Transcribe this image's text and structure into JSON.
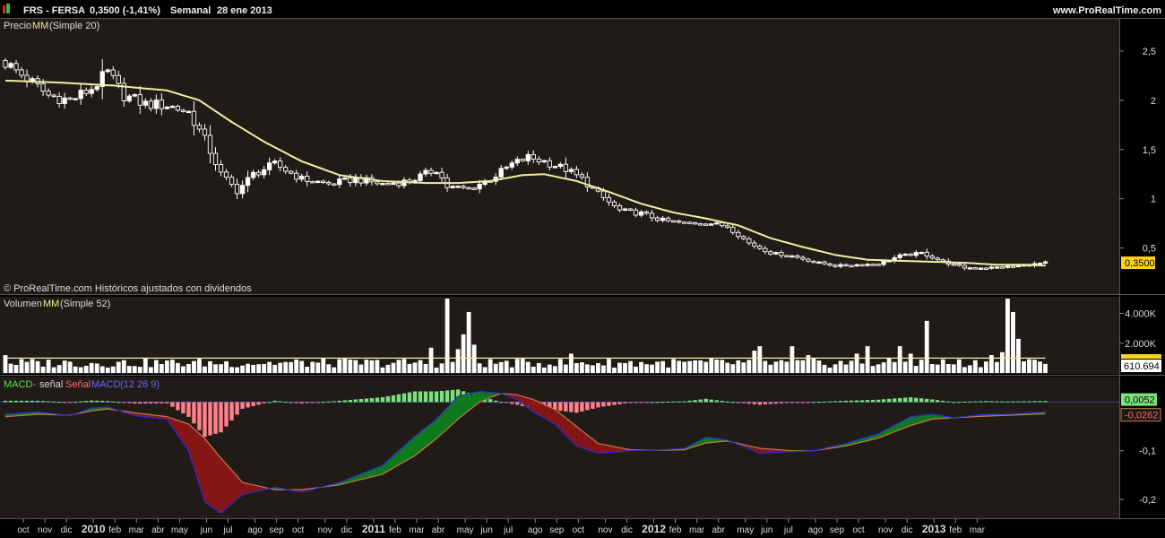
{
  "header": {
    "ticker": "FRS - FERSA",
    "quote": "0,3500 (-1,41%)",
    "period": "Semanal",
    "date": "28 ene 2013",
    "site": "www.ProRealTime.com"
  },
  "footer_note": "© ProRealTime.com Históricos ajustados con dividendos",
  "colors": {
    "background": "#201b17",
    "ma_line": "#f2eea0",
    "macd_line": "#2a2ad6",
    "signal_line": "#c87a46",
    "hist_up": "#7be27b",
    "hist_down": "#ff7f8a",
    "fill_up": "#0f7a1d",
    "fill_down": "#861515",
    "price_tag": "#ffd21f",
    "volume_tag": "#ffffff"
  },
  "chart_data": [
    {
      "type": "candlestick",
      "legend": {
        "label": "Precio",
        "ma": "MM",
        "ma_params": "(Simple 20)"
      },
      "ylim": [
        0.05,
        2.8
      ],
      "yticks": [
        "2,5",
        "2",
        "1,5",
        "1",
        "0,5"
      ],
      "ytick_values": [
        2.5,
        2.0,
        1.5,
        1.0,
        0.5
      ],
      "last_value_label": "0,3500",
      "last_value": 0.35,
      "close_anchors": [
        [
          0,
          2.38
        ],
        [
          4,
          2.22
        ],
        [
          8,
          2.05
        ],
        [
          12,
          2.0
        ],
        [
          16,
          2.12
        ],
        [
          19,
          2.28
        ],
        [
          22,
          2.05
        ],
        [
          26,
          1.96
        ],
        [
          30,
          1.95
        ],
        [
          34,
          1.88
        ],
        [
          37,
          1.6
        ],
        [
          40,
          1.25
        ],
        [
          43,
          1.08
        ],
        [
          46,
          1.25
        ],
        [
          50,
          1.35
        ],
        [
          55,
          1.2
        ],
        [
          60,
          1.15
        ],
        [
          65,
          1.2
        ],
        [
          70,
          1.15
        ],
        [
          75,
          1.18
        ],
        [
          80,
          1.3
        ],
        [
          82,
          1.12
        ],
        [
          86,
          1.1
        ],
        [
          90,
          1.2
        ],
        [
          94,
          1.35
        ],
        [
          97,
          1.42
        ],
        [
          100,
          1.38
        ],
        [
          104,
          1.3
        ],
        [
          107,
          1.2
        ],
        [
          110,
          1.05
        ],
        [
          114,
          0.88
        ],
        [
          118,
          0.85
        ],
        [
          122,
          0.78
        ],
        [
          126,
          0.75
        ],
        [
          130,
          0.76
        ],
        [
          134,
          0.72
        ],
        [
          138,
          0.55
        ],
        [
          142,
          0.45
        ],
        [
          146,
          0.42
        ],
        [
          150,
          0.36
        ],
        [
          154,
          0.32
        ],
        [
          158,
          0.33
        ],
        [
          162,
          0.34
        ],
        [
          166,
          0.42
        ],
        [
          170,
          0.45
        ],
        [
          174,
          0.36
        ],
        [
          178,
          0.3
        ],
        [
          182,
          0.3
        ],
        [
          186,
          0.31
        ],
        [
          190,
          0.33
        ],
        [
          193,
          0.35
        ]
      ],
      "ma_anchors": [
        [
          0,
          2.2
        ],
        [
          10,
          2.18
        ],
        [
          20,
          2.15
        ],
        [
          30,
          2.1
        ],
        [
          36,
          2.0
        ],
        [
          42,
          1.78
        ],
        [
          48,
          1.58
        ],
        [
          55,
          1.38
        ],
        [
          62,
          1.24
        ],
        [
          70,
          1.18
        ],
        [
          78,
          1.16
        ],
        [
          84,
          1.16
        ],
        [
          90,
          1.18
        ],
        [
          96,
          1.24
        ],
        [
          100,
          1.25
        ],
        [
          106,
          1.18
        ],
        [
          112,
          1.07
        ],
        [
          118,
          0.95
        ],
        [
          124,
          0.86
        ],
        [
          130,
          0.8
        ],
        [
          136,
          0.73
        ],
        [
          142,
          0.6
        ],
        [
          148,
          0.51
        ],
        [
          154,
          0.43
        ],
        [
          160,
          0.38
        ],
        [
          166,
          0.37
        ],
        [
          172,
          0.36
        ],
        [
          178,
          0.35
        ],
        [
          184,
          0.33
        ],
        [
          190,
          0.33
        ],
        [
          193,
          0.32
        ]
      ]
    },
    {
      "type": "bar",
      "legend": {
        "label": "Volumen",
        "ma": "MM",
        "ma_params": "(Simple 52)"
      },
      "ylim": [
        0,
        5000000
      ],
      "yticks": [
        "4.000K",
        "2.000K"
      ],
      "ytick_values": [
        4000000,
        2000000
      ],
      "last_value_label": "610.694",
      "last_value": 610694,
      "ma_value": 1000000,
      "spikes": [
        [
          0,
          1200000
        ],
        [
          79,
          1700000
        ],
        [
          82,
          5000000
        ],
        [
          84,
          1600000
        ],
        [
          85,
          2600000
        ],
        [
          86,
          4100000
        ],
        [
          87,
          1900000
        ],
        [
          105,
          1300000
        ],
        [
          139,
          1500000
        ],
        [
          140,
          1800000
        ],
        [
          146,
          1800000
        ],
        [
          149,
          1200000
        ],
        [
          158,
          1300000
        ],
        [
          160,
          1800000
        ],
        [
          166,
          1800000
        ],
        [
          168,
          1300000
        ],
        [
          171,
          3500000
        ],
        [
          183,
          1200000
        ],
        [
          185,
          1400000
        ],
        [
          186,
          5000000
        ],
        [
          187,
          4100000
        ],
        [
          188,
          2300000
        ]
      ]
    },
    {
      "type": "area",
      "legend": {
        "a": "MACD-",
        "b": "señal",
        "c": "Señal",
        "d": "MACD",
        "e": "(12 26 9)"
      },
      "ylim": [
        -0.235,
        0.045
      ],
      "yticks": [
        "0,0052",
        "-0,0262",
        "-0,1",
        "-0,2"
      ],
      "ytick_values": [
        0.0052,
        -0.0262,
        -0.1,
        -0.2
      ],
      "macd_anchors": [
        [
          0,
          -0.025
        ],
        [
          6,
          -0.02
        ],
        [
          12,
          -0.028
        ],
        [
          16,
          -0.012
        ],
        [
          19,
          -0.01
        ],
        [
          24,
          -0.028
        ],
        [
          30,
          -0.035
        ],
        [
          34,
          -0.1
        ],
        [
          37,
          -0.205
        ],
        [
          40,
          -0.228
        ],
        [
          44,
          -0.19
        ],
        [
          50,
          -0.175
        ],
        [
          55,
          -0.185
        ],
        [
          62,
          -0.165
        ],
        [
          70,
          -0.13
        ],
        [
          76,
          -0.07
        ],
        [
          80,
          -0.035
        ],
        [
          84,
          0.012
        ],
        [
          88,
          0.022
        ],
        [
          92,
          0.018
        ],
        [
          95,
          0.005
        ],
        [
          98,
          -0.02
        ],
        [
          102,
          -0.045
        ],
        [
          106,
          -0.09
        ],
        [
          110,
          -0.105
        ],
        [
          116,
          -0.1
        ],
        [
          122,
          -0.098
        ],
        [
          126,
          -0.095
        ],
        [
          130,
          -0.072
        ],
        [
          134,
          -0.078
        ],
        [
          140,
          -0.105
        ],
        [
          146,
          -0.102
        ],
        [
          150,
          -0.1
        ],
        [
          156,
          -0.085
        ],
        [
          162,
          -0.065
        ],
        [
          168,
          -0.03
        ],
        [
          172,
          -0.025
        ],
        [
          176,
          -0.032
        ],
        [
          182,
          -0.025
        ],
        [
          186,
          -0.025
        ],
        [
          193,
          -0.02
        ]
      ],
      "signal_anchors": [
        [
          0,
          -0.03
        ],
        [
          6,
          -0.025
        ],
        [
          12,
          -0.027
        ],
        [
          16,
          -0.018
        ],
        [
          19,
          -0.014
        ],
        [
          24,
          -0.022
        ],
        [
          30,
          -0.03
        ],
        [
          34,
          -0.045
        ],
        [
          37,
          -0.075
        ],
        [
          40,
          -0.115
        ],
        [
          44,
          -0.165
        ],
        [
          50,
          -0.18
        ],
        [
          55,
          -0.18
        ],
        [
          62,
          -0.17
        ],
        [
          70,
          -0.148
        ],
        [
          76,
          -0.11
        ],
        [
          80,
          -0.075
        ],
        [
          84,
          -0.035
        ],
        [
          88,
          0.0
        ],
        [
          92,
          0.018
        ],
        [
          95,
          0.015
        ],
        [
          98,
          0.005
        ],
        [
          102,
          -0.015
        ],
        [
          106,
          -0.05
        ],
        [
          110,
          -0.085
        ],
        [
          116,
          -0.098
        ],
        [
          122,
          -0.099
        ],
        [
          126,
          -0.098
        ],
        [
          130,
          -0.084
        ],
        [
          134,
          -0.08
        ],
        [
          140,
          -0.095
        ],
        [
          146,
          -0.1
        ],
        [
          150,
          -0.1
        ],
        [
          156,
          -0.09
        ],
        [
          162,
          -0.074
        ],
        [
          168,
          -0.048
        ],
        [
          172,
          -0.035
        ],
        [
          176,
          -0.032
        ],
        [
          182,
          -0.029
        ],
        [
          186,
          -0.027
        ],
        [
          193,
          -0.024
        ]
      ]
    }
  ],
  "x_axis": {
    "labels": [
      {
        "i": 1,
        "text": "oct",
        "bold": false
      },
      {
        "i": 5,
        "text": "nov",
        "bold": false
      },
      {
        "i": 9,
        "text": "dic",
        "bold": false
      },
      {
        "i": 14,
        "text": "2010",
        "bold": true
      },
      {
        "i": 18,
        "text": "feb",
        "bold": false
      },
      {
        "i": 22,
        "text": "mar",
        "bold": false
      },
      {
        "i": 26,
        "text": "abr",
        "bold": false
      },
      {
        "i": 30,
        "text": "may",
        "bold": false
      },
      {
        "i": 35,
        "text": "jun",
        "bold": false
      },
      {
        "i": 39,
        "text": "jul",
        "bold": false
      },
      {
        "i": 44,
        "text": "ago",
        "bold": false
      },
      {
        "i": 48,
        "text": "sep",
        "bold": false
      },
      {
        "i": 52,
        "text": "oct",
        "bold": false
      },
      {
        "i": 57,
        "text": "nov",
        "bold": false
      },
      {
        "i": 61,
        "text": "dic",
        "bold": false
      },
      {
        "i": 66,
        "text": "2011",
        "bold": true
      },
      {
        "i": 70,
        "text": "feb",
        "bold": false
      },
      {
        "i": 74,
        "text": "mar",
        "bold": false
      },
      {
        "i": 78,
        "text": "abr",
        "bold": false
      },
      {
        "i": 83,
        "text": "may",
        "bold": false
      },
      {
        "i": 87,
        "text": "jun",
        "bold": false
      },
      {
        "i": 91,
        "text": "jul",
        "bold": false
      },
      {
        "i": 96,
        "text": "ago",
        "bold": false
      },
      {
        "i": 100,
        "text": "sep",
        "bold": false
      },
      {
        "i": 104,
        "text": "oct",
        "bold": false
      },
      {
        "i": 109,
        "text": "nov",
        "bold": false
      },
      {
        "i": 113,
        "text": "dic",
        "bold": false
      },
      {
        "i": 118,
        "text": "2012",
        "bold": true
      },
      {
        "i": 122,
        "text": "feb",
        "bold": false
      },
      {
        "i": 126,
        "text": "mar",
        "bold": false
      },
      {
        "i": 130,
        "text": "abr",
        "bold": false
      },
      {
        "i": 135,
        "text": "may",
        "bold": false
      },
      {
        "i": 139,
        "text": "jun",
        "bold": false
      },
      {
        "i": 143,
        "text": "jul",
        "bold": false
      },
      {
        "i": 148,
        "text": "ago",
        "bold": false
      },
      {
        "i": 152,
        "text": "sep",
        "bold": false
      },
      {
        "i": 156,
        "text": "oct",
        "bold": false
      },
      {
        "i": 161,
        "text": "nov",
        "bold": false
      },
      {
        "i": 165,
        "text": "dic",
        "bold": false
      },
      {
        "i": 170,
        "text": "2013",
        "bold": true
      },
      {
        "i": 174,
        "text": "feb",
        "bold": false
      },
      {
        "i": 178,
        "text": "mar",
        "bold": false
      }
    ]
  }
}
